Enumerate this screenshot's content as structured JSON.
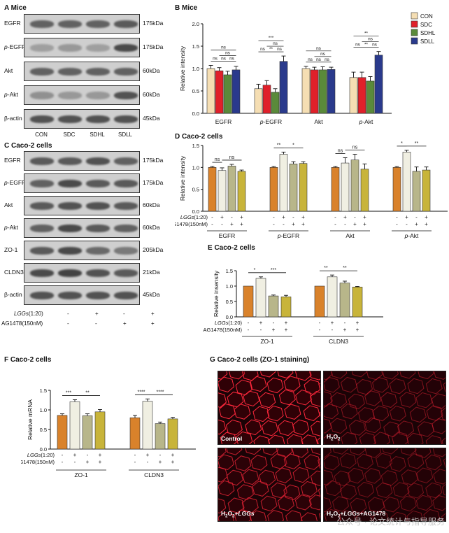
{
  "panelA": {
    "letter": "A",
    "title": "Mice",
    "blots": [
      {
        "name": "EGFR",
        "mw": "175kDa",
        "bands": [
          0.7,
          0.7,
          0.7,
          0.75
        ]
      },
      {
        "name": "p-EGFR",
        "mw": "175kDa",
        "bands": [
          0.3,
          0.35,
          0.3,
          0.85
        ]
      },
      {
        "name": "Akt",
        "mw": "60kDa",
        "bands": [
          0.7,
          0.7,
          0.7,
          0.7
        ]
      },
      {
        "name": "p-Akt",
        "mw": "60kDa",
        "bands": [
          0.4,
          0.35,
          0.35,
          0.8
        ]
      },
      {
        "name": "β-actin",
        "mw": "45kDa",
        "bands": [
          0.8,
          0.8,
          0.8,
          0.8
        ]
      }
    ],
    "lanes": [
      "CON",
      "SDC",
      "SDHL",
      "SDLL"
    ]
  },
  "panelB": {
    "letter": "B",
    "title": "Mice",
    "legend": [
      "CON",
      "SDC",
      "SDHL",
      "SDLL"
    ]
  },
  "panelC": {
    "letter": "C",
    "title": "Caco-2 cells",
    "blots": [
      {
        "name": "EGFR",
        "mw": "175kDa",
        "bands": [
          0.75,
          0.75,
          0.8,
          0.7
        ]
      },
      {
        "name": "p-EGFR",
        "mw": "175kDa",
        "bands": [
          0.7,
          0.85,
          0.75,
          0.75
        ]
      },
      {
        "name": "Akt",
        "mw": "60kDa",
        "bands": [
          0.75,
          0.8,
          0.8,
          0.75
        ]
      },
      {
        "name": "p-Akt",
        "mw": "60kDa",
        "bands": [
          0.7,
          0.85,
          0.75,
          0.7
        ]
      },
      {
        "name": "ZO-1",
        "mw": "205kDa",
        "bands": [
          0.75,
          0.85,
          0.65,
          0.55
        ]
      },
      {
        "name": "CLDN3",
        "mw": "21kDa",
        "bands": [
          0.85,
          0.9,
          0.8,
          0.75
        ]
      },
      {
        "name": "β-actin",
        "mw": "45kDa",
        "bands": [
          0.8,
          0.8,
          0.8,
          0.8
        ]
      }
    ],
    "row1_label": "LGGs(1:20)",
    "row2_label": "AG1478(150nM)",
    "row1": [
      "-",
      "+",
      "-",
      "+"
    ],
    "row2": [
      "-",
      "-",
      "+",
      "+"
    ]
  },
  "panelD": {
    "letter": "D",
    "title": "Caco-2 cells"
  },
  "panelE": {
    "letter": "E",
    "title": "Caco-2 cells"
  },
  "panelF": {
    "letter": "F",
    "title": "Caco-2 cells"
  },
  "panelG": {
    "letter": "G",
    "title": "Caco-2 cells (ZO-1 staining)",
    "images": [
      "Control",
      "H2O2",
      "H2O2+LGGs",
      "H2O2+LGGs+AG1478"
    ]
  },
  "watermark": "公众号 · 论文统计与指导服务",
  "colors": {
    "CON": "#f5deb3",
    "SDC": "#e0202a",
    "SDHL": "#5a8a3a",
    "SDLL": "#2a3a8c",
    "g1": "#d9822b",
    "g2": "#f0efe2",
    "g3": "#b8b68a",
    "g4": "#c8b43a"
  },
  "chart_data": [
    {
      "type": "bar",
      "id": "B",
      "ylabel": "Relative intensity",
      "ylim": [
        0,
        2.0
      ],
      "yticks": [
        0.0,
        0.5,
        1.0,
        1.5,
        2.0
      ],
      "categories": [
        "EGFR",
        "p-EGFR",
        "Akt",
        "p-Akt"
      ],
      "series": [
        {
          "name": "CON",
          "values": [
            1.0,
            0.55,
            1.0,
            0.8
          ],
          "err": [
            0.07,
            0.1,
            0.05,
            0.12
          ]
        },
        {
          "name": "SDC",
          "values": [
            0.95,
            0.63,
            0.97,
            0.8
          ],
          "err": [
            0.07,
            0.1,
            0.06,
            0.12
          ]
        },
        {
          "name": "SDHL",
          "values": [
            0.86,
            0.47,
            0.97,
            0.72
          ],
          "err": [
            0.08,
            0.08,
            0.07,
            0.1
          ]
        },
        {
          "name": "SDLL",
          "values": [
            0.97,
            1.16,
            0.98,
            1.3
          ],
          "err": [
            0.08,
            0.12,
            0.05,
            0.08
          ]
        }
      ],
      "sig": [
        [
          "ns",
          "ns",
          "ns",
          "ns",
          "ns",
          "ns"
        ],
        [
          "ns",
          "**",
          "ns",
          "***",
          "ns",
          ""
        ],
        [
          "ns",
          "ns",
          "ns",
          "ns",
          "ns",
          ""
        ],
        [
          "ns",
          "**",
          "ns",
          "**",
          "ns",
          ""
        ]
      ]
    },
    {
      "type": "bar",
      "id": "D",
      "ylabel": "Relative intensity",
      "ylim": [
        0,
        1.5
      ],
      "yticks": [
        0.0,
        0.5,
        1.0,
        1.5
      ],
      "categories": [
        "EGFR",
        "p-EGFR",
        "Akt",
        "p-Akt"
      ],
      "values": [
        [
          1.0,
          0.93,
          1.03,
          0.91
        ],
        [
          1.0,
          1.3,
          1.08,
          1.09
        ],
        [
          1.0,
          1.1,
          1.17,
          0.96
        ],
        [
          1.0,
          1.35,
          0.91,
          0.94
        ]
      ],
      "err": [
        [
          0.02,
          0.06,
          0.04,
          0.03
        ],
        [
          0.02,
          0.05,
          0.05,
          0.04
        ],
        [
          0.02,
          0.12,
          0.13,
          0.12
        ],
        [
          0.02,
          0.04,
          0.1,
          0.07
        ]
      ],
      "sig": [
        [
          "ns",
          "ns"
        ],
        [
          "**",
          "*"
        ],
        [
          "ns",
          "ns"
        ],
        [
          "*",
          "**"
        ]
      ],
      "row1": [
        "-",
        "+",
        "-",
        "+"
      ],
      "row2": [
        "-",
        "-",
        "+",
        "+"
      ],
      "row1_label": "LGGs(1:20)",
      "row2_label": "AG1478(150nM)"
    },
    {
      "type": "bar",
      "id": "E",
      "ylabel": "Relative insensity",
      "ylim": [
        0,
        1.5
      ],
      "yticks": [
        0.0,
        0.5,
        1.0,
        1.5
      ],
      "categories": [
        "ZO-1",
        "CLDN3"
      ],
      "values": [
        [
          1.0,
          1.25,
          0.68,
          0.65
        ],
        [
          1.0,
          1.3,
          1.1,
          0.97
        ]
      ],
      "err": [
        [
          0.0,
          0.05,
          0.03,
          0.05
        ],
        [
          0.0,
          0.06,
          0.06,
          0.02
        ]
      ],
      "sig": [
        [
          "*",
          "***"
        ],
        [
          "**",
          "**"
        ]
      ],
      "row1": [
        "-",
        "+",
        "-",
        "+"
      ],
      "row2": [
        "-",
        "-",
        "+",
        "+"
      ],
      "row1_label": "LGGs(1:20)",
      "row2_label": "AG1478(150nM)"
    },
    {
      "type": "bar",
      "id": "F",
      "ylabel": "Relative mRNA",
      "ylim": [
        0,
        1.5
      ],
      "yticks": [
        0.0,
        0.5,
        1.0,
        1.5
      ],
      "categories": [
        "ZO-1",
        "CLDN3"
      ],
      "values": [
        [
          0.86,
          1.21,
          0.85,
          0.95
        ],
        [
          0.8,
          1.22,
          0.65,
          0.77
        ]
      ],
      "err": [
        [
          0.04,
          0.05,
          0.05,
          0.06
        ],
        [
          0.06,
          0.06,
          0.04,
          0.04
        ]
      ],
      "sig": [
        [
          "***",
          "**"
        ],
        [
          "****",
          "****"
        ]
      ],
      "row1": [
        "-",
        "+",
        "-",
        "+"
      ],
      "row2": [
        "-",
        "-",
        "+",
        "+"
      ],
      "row1_label": "LGGs(1:20)",
      "row2_label": "AG1478(150nM)"
    }
  ]
}
